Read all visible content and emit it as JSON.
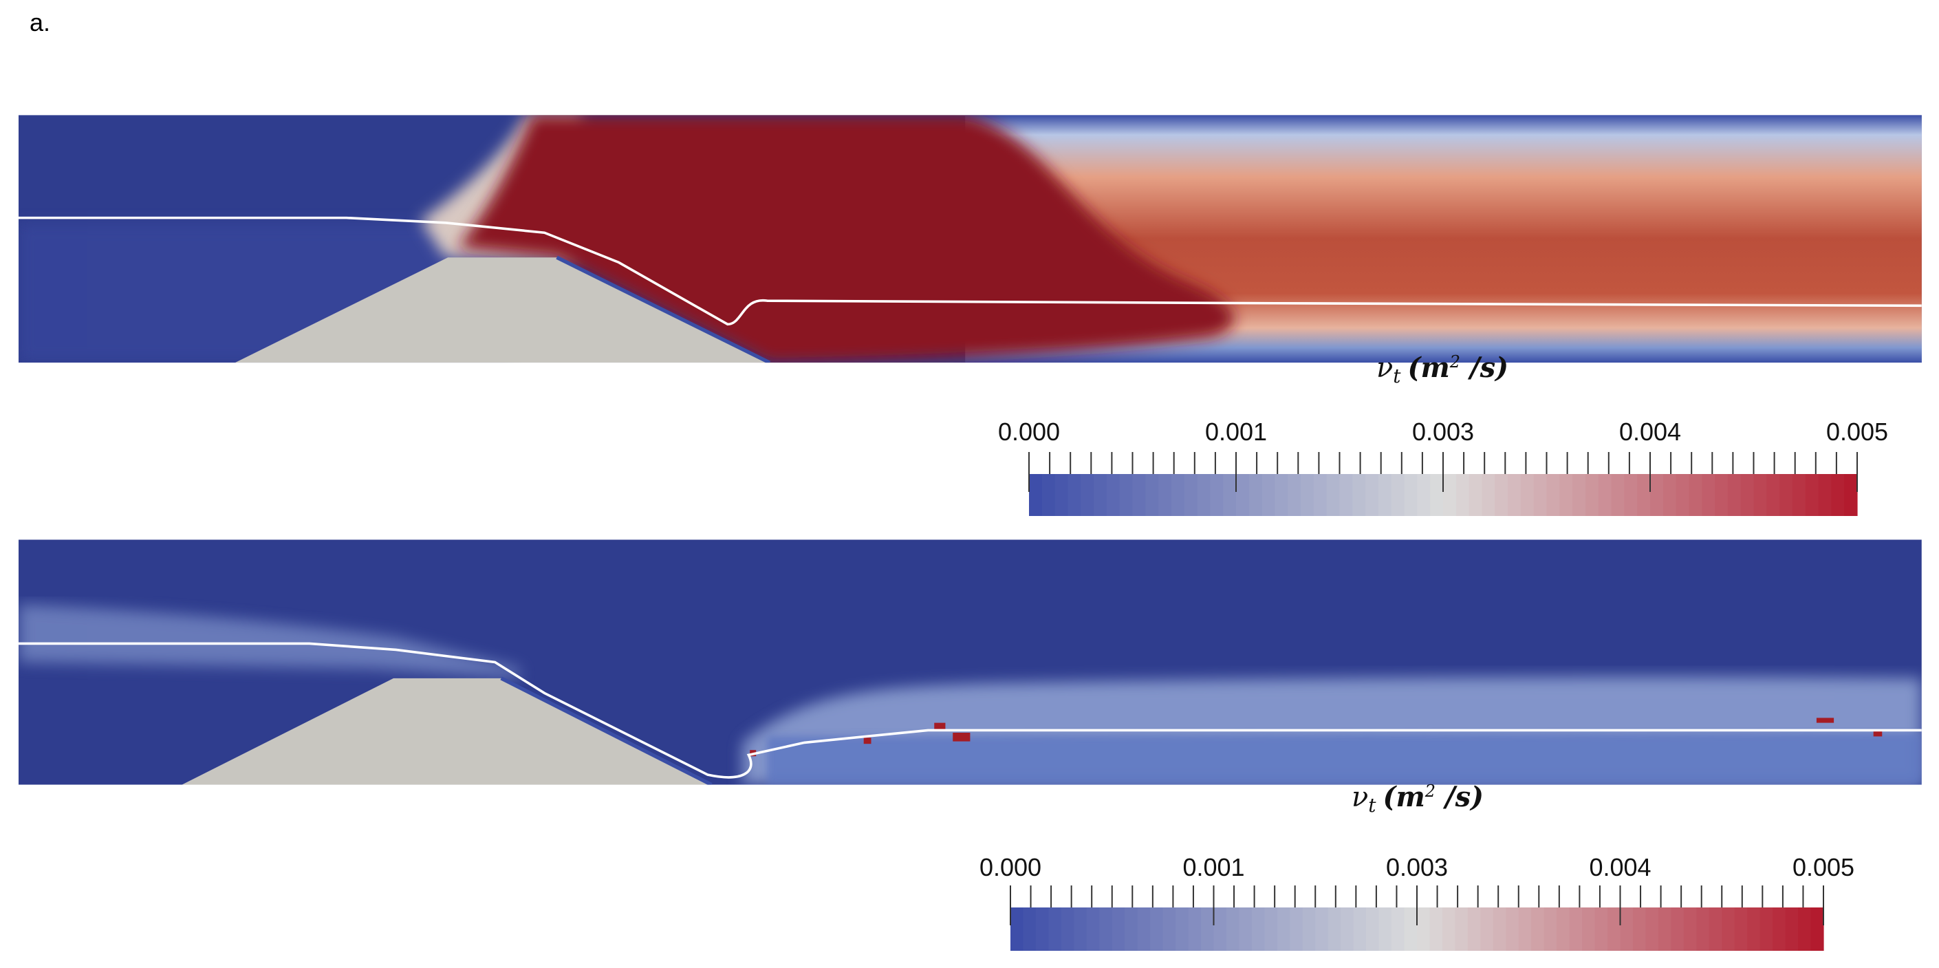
{
  "figure_label": "a.",
  "chart_data": [
    {
      "type": "colorbar",
      "title": {
        "symbol": "ν",
        "subscript": "t",
        "unit_open": "(m",
        "superscript": "2",
        "unit_close": " /s)"
      },
      "range": [
        0,
        0.005
      ],
      "ticks": [
        {
          "value": 0,
          "label": "0.000"
        },
        {
          "value": 0.00125,
          "label": "0.001"
        },
        {
          "value": 0.0025,
          "label": "0.003"
        },
        {
          "value": 0.00375,
          "label": "0.004"
        },
        {
          "value": 0.005,
          "label": "0.005"
        }
      ],
      "minor_per_major": 10,
      "colors": [
        "#3b4ca8",
        "#dcdcdc",
        "#b2182b"
      ]
    },
    {
      "type": "colorbar",
      "title": {
        "symbol": "ν",
        "subscript": "t",
        "unit_open": "(m",
        "superscript": "2",
        "unit_close": " /s)"
      },
      "range": [
        0,
        0.005
      ],
      "ticks": [
        {
          "value": 0,
          "label": "0.000"
        },
        {
          "value": 0.00125,
          "label": "0.001"
        },
        {
          "value": 0.0025,
          "label": "0.003"
        },
        {
          "value": 0.00375,
          "label": "0.004"
        },
        {
          "value": 0.005,
          "label": "0.005"
        }
      ],
      "minor_per_major": 10,
      "colors": [
        "#3b4ca8",
        "#dcdcdc",
        "#b2182b"
      ]
    }
  ]
}
